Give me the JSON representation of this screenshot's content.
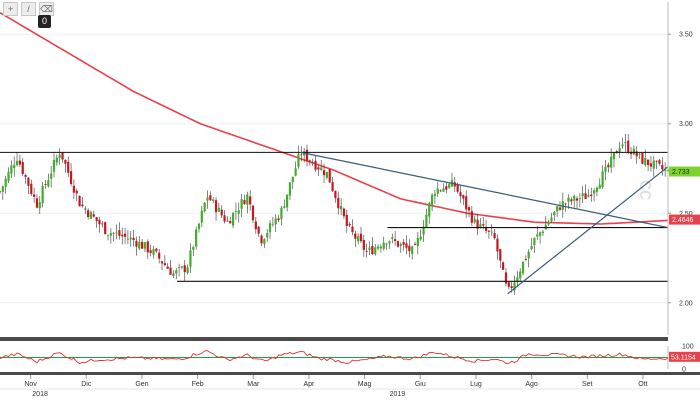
{
  "toolbar": {
    "buttons": [
      {
        "icon": "crosshair-icon",
        "glyph": "+"
      },
      {
        "icon": "pencil-icon",
        "glyph": "/"
      },
      {
        "icon": "eraser-icon",
        "glyph": "⌫"
      }
    ],
    "count": "0"
  },
  "watermark": "cc",
  "chart_data": {
    "type": "candlestick",
    "price_ylim": [
      1.82,
      3.68
    ],
    "price_ticks": [
      "3.50",
      "3.00",
      "2.50",
      "2.00"
    ],
    "last_price_tag": "2.733",
    "ma_tag": "2.4646",
    "colors": {
      "up": "#3fae2a",
      "down": "#c8161e",
      "ma": "#e8414b",
      "trend": "#3a5a7a",
      "oscillator": "#e03030",
      "osc_mid": "#16a34a"
    },
    "months": [
      "Nov",
      "Dic",
      "Gen",
      "Feb",
      "Mar",
      "Apr",
      "Mag",
      "Giu",
      "Lug",
      "Ago",
      "Set",
      "Ott"
    ],
    "years": [
      "2018",
      "2019"
    ],
    "oscillator": {
      "ticks": [
        "100",
        "0"
      ],
      "mid": 50,
      "last_tag": "53.1154"
    },
    "levels": [
      {
        "y": 2.84,
        "from": 0.0,
        "to": 1.0
      },
      {
        "y": 2.12,
        "from": 0.265,
        "to": 1.0
      },
      {
        "y": 2.42,
        "from": 0.58,
        "to": 1.0
      }
    ],
    "trendlines": [
      {
        "from": [
          0.45,
          2.84
        ],
        "to": [
          1.0,
          2.42
        ]
      },
      {
        "from": [
          0.76,
          2.05
        ],
        "to": [
          1.0,
          2.76
        ]
      }
    ],
    "close_path": [
      [
        0.0,
        2.62
      ],
      [
        0.025,
        2.82
      ],
      [
        0.055,
        2.55
      ],
      [
        0.09,
        2.85
      ],
      [
        0.12,
        2.55
      ],
      [
        0.16,
        2.4
      ],
      [
        0.2,
        2.35
      ],
      [
        0.23,
        2.28
      ],
      [
        0.26,
        2.16
      ],
      [
        0.28,
        2.2
      ],
      [
        0.31,
        2.6
      ],
      [
        0.34,
        2.45
      ],
      [
        0.37,
        2.6
      ],
      [
        0.39,
        2.35
      ],
      [
        0.42,
        2.5
      ],
      [
        0.45,
        2.84
      ],
      [
        0.49,
        2.72
      ],
      [
        0.52,
        2.42
      ],
      [
        0.55,
        2.28
      ],
      [
        0.58,
        2.36
      ],
      [
        0.62,
        2.28
      ],
      [
        0.65,
        2.63
      ],
      [
        0.68,
        2.66
      ],
      [
        0.71,
        2.45
      ],
      [
        0.74,
        2.36
      ],
      [
        0.76,
        2.05
      ],
      [
        0.8,
        2.35
      ],
      [
        0.84,
        2.55
      ],
      [
        0.88,
        2.6
      ],
      [
        0.91,
        2.75
      ],
      [
        0.93,
        2.9
      ],
      [
        0.96,
        2.8
      ],
      [
        1.0,
        2.73
      ]
    ],
    "ma_path": [
      [
        0.0,
        3.62
      ],
      [
        0.1,
        3.4
      ],
      [
        0.2,
        3.18
      ],
      [
        0.3,
        3.0
      ],
      [
        0.4,
        2.87
      ],
      [
        0.5,
        2.74
      ],
      [
        0.6,
        2.58
      ],
      [
        0.7,
        2.5
      ],
      [
        0.8,
        2.45
      ],
      [
        0.9,
        2.44
      ],
      [
        1.0,
        2.46
      ]
    ]
  }
}
